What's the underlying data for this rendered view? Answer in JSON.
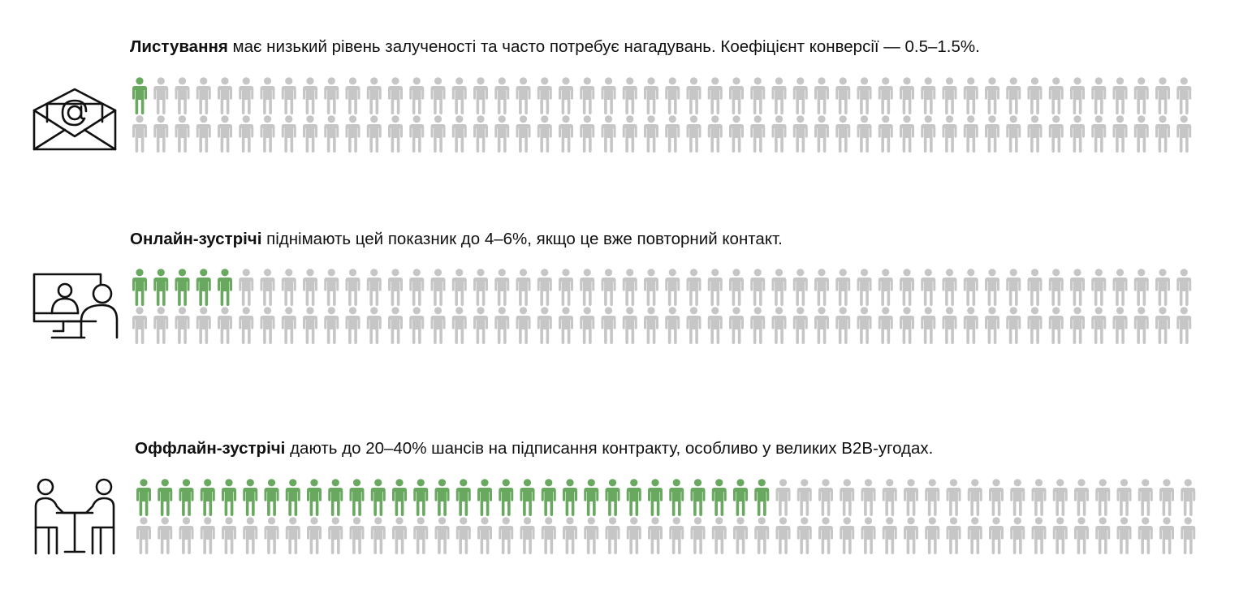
{
  "sections": [
    {
      "bold": "Листування",
      "text": "має низький рівень залученості та часто потребує нагадувань. Коефіцієнт конверсії — 0.5–1.5%.",
      "highlighted": 1,
      "total": 100
    },
    {
      "bold": "Онлайн-зустрічі",
      "text": "піднімають цей показник до 4–6%, якщо це вже повторний контакт.",
      "highlighted": 5,
      "total": 100
    },
    {
      "bold": "Оффлайн-зустрічі",
      "text": "дають до 20–40% шансів на підписання контракту, особливо у великих B2B-угодах.",
      "highlighted": 30,
      "total": 100
    }
  ],
  "highlight_color": "#68a85f",
  "base_color": "#c6c6c6"
}
